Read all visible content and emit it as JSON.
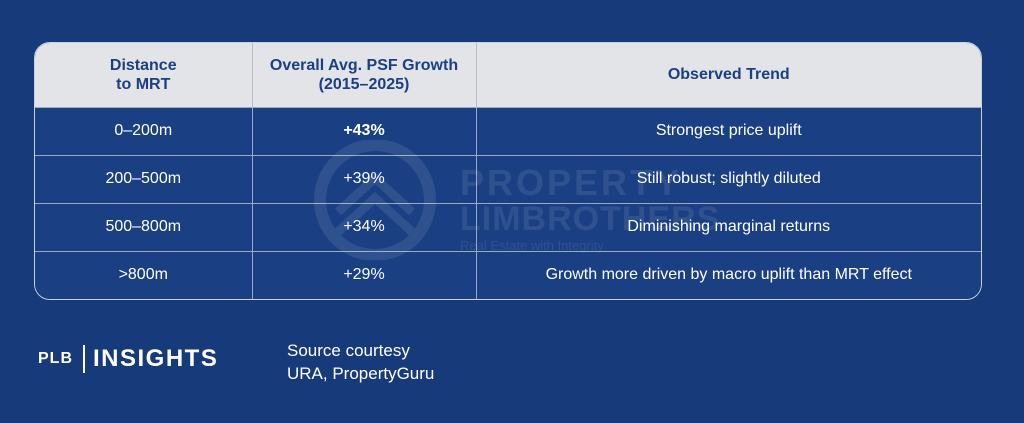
{
  "table": {
    "headers": [
      {
        "line1": "Distance",
        "line2": "to MRT"
      },
      {
        "line1": "Overall Avg. PSF Growth",
        "line2": "(2015–2025)"
      },
      {
        "line1": "Observed Trend",
        "line2": ""
      }
    ],
    "rows": [
      {
        "distance": "0–200m",
        "growth": "+43%",
        "trend": "Strongest price uplift"
      },
      {
        "distance": "200–500m",
        "growth": "+39%",
        "trend": "Still robust; slightly diluted"
      },
      {
        "distance": "500–800m",
        "growth": "+34%",
        "trend": "Diminishing marginal returns"
      },
      {
        "distance": ">800m",
        "growth": "+29%",
        "trend": "Growth more driven by macro uplift than MRT effect"
      }
    ]
  },
  "watermark": {
    "line1": "PROPERTY",
    "line2": "LIMBROTHERS",
    "line3": "Real Estate with Integrity"
  },
  "footer": {
    "logo_plb": "PLB",
    "logo_insights": "INSIGHTS",
    "source_line1": "Source courtesy",
    "source_line2": "URA, PropertyGuru"
  },
  "colors": {
    "background": "#163a7a",
    "header_bg": "#e2e4e8",
    "header_text": "#1b3f82",
    "row_bg": "#1a3f82",
    "text": "#ffffff"
  }
}
